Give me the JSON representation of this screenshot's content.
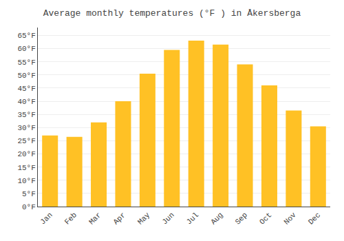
{
  "chart_data": {
    "type": "bar",
    "title": "Average monthly temperatures (°F ) in Åkersberga",
    "categories": [
      "Jan",
      "Feb",
      "Mar",
      "Apr",
      "May",
      "Jun",
      "Jul",
      "Aug",
      "Sep",
      "Oct",
      "Nov",
      "Dec"
    ],
    "values": [
      27,
      26.5,
      32,
      40,
      50.5,
      59.5,
      63,
      61.5,
      54,
      46,
      36.5,
      30.5
    ],
    "color": "#FFC125",
    "ylim": [
      0,
      68
    ],
    "yticks": [
      {
        "value": 0,
        "label": "0°F"
      },
      {
        "value": 5,
        "label": "5°F"
      },
      {
        "value": 10,
        "label": "10°F"
      },
      {
        "value": 15,
        "label": "15°F"
      },
      {
        "value": 20,
        "label": "20°F"
      },
      {
        "value": 25,
        "label": "25°F"
      },
      {
        "value": 30,
        "label": "30°F"
      },
      {
        "value": 35,
        "label": "35°F"
      },
      {
        "value": 40,
        "label": "40°F"
      },
      {
        "value": 45,
        "label": "45°F"
      },
      {
        "value": 50,
        "label": "50°F"
      },
      {
        "value": 55,
        "label": "55°F"
      },
      {
        "value": 60,
        "label": "60°F"
      },
      {
        "value": 65,
        "label": "65°F"
      }
    ],
    "grid": true
  }
}
